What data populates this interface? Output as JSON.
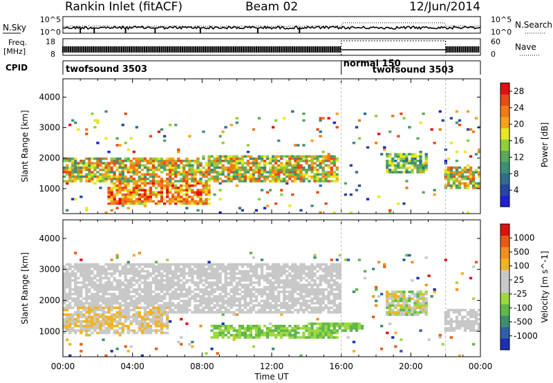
{
  "header": {
    "station": "Rankin Inlet (fitACF)",
    "beam": "Beam 02",
    "date": "12/Jun/2014"
  },
  "summary": {
    "nsky_label": "N.Sky",
    "nsearch_label": "N.Search",
    "freq_label_line1": "Freq.",
    "freq_label_line2": "[MHz]",
    "nave_label": "Nave",
    "cpid_label": "CPID",
    "noise_ticks": [
      "10^5",
      "10^0"
    ],
    "noise_ticks_right": [
      "10^5",
      "10^0"
    ],
    "freq_ticks": [
      "18",
      "8"
    ],
    "nave_ticks": [
      "60",
      "0"
    ],
    "cpid_segments": [
      {
        "name": "twofsound 3503",
        "start": 0,
        "end": 16
      },
      {
        "name": "normal 150",
        "start": 16,
        "end": 22
      },
      {
        "name": "twofsound 3503",
        "start": 16,
        "end": 22
      },
      {
        "name": "",
        "start": 22,
        "end": 24
      }
    ]
  },
  "colors": {
    "power_scale": [
      "#1f1fd6",
      "#2646a0",
      "#2f6e8c",
      "#3c8f74",
      "#5aa85c",
      "#8fcf3c",
      "#e8e820",
      "#f6a21a",
      "#f07a18",
      "#e84a18",
      "#e01010"
    ],
    "velocity_scale": [
      "#1c2eb4",
      "#2f5fa6",
      "#3c8f6c",
      "#5fb84a",
      "#9dd840",
      "#c8c8c8",
      "#c8c8c8",
      "#f2b320",
      "#f09020",
      "#e85a18",
      "#e01010"
    ],
    "missing": "#ffffff"
  },
  "chart_data": [
    {
      "type": "heatmap",
      "title": "",
      "xlabel": "Time UT",
      "ylabel": "Slant Range [km]",
      "colorbar_label": "Power [dB]",
      "xlim": [
        "00:00",
        "24:00"
      ],
      "ylim": [
        180,
        4600
      ],
      "x_ticks": [
        "00:00",
        "04:00",
        "08:00",
        "12:00",
        "16:00",
        "20:00",
        "00:00"
      ],
      "y_ticks": [
        1000,
        2000,
        3000,
        4000
      ],
      "colorbar_ticks": [
        4,
        8,
        12,
        16,
        20,
        24,
        28
      ],
      "colorbar_range": [
        0,
        30
      ],
      "features": [
        {
          "t_start": 0.0,
          "t_end": 15.8,
          "range_km": [
            1200,
            2000
          ],
          "value_db": [
            8,
            28
          ]
        },
        {
          "t_start": 2.5,
          "t_end": 8.5,
          "range_km": [
            500,
            1300
          ],
          "value_db": [
            16,
            30
          ]
        },
        {
          "t_start": 8.0,
          "t_end": 15.8,
          "range_km": [
            1500,
            2100
          ],
          "value_db": [
            8,
            24
          ]
        },
        {
          "t_start": 18.5,
          "t_end": 21.0,
          "range_km": [
            1500,
            2200
          ],
          "value_db": [
            6,
            20
          ]
        },
        {
          "t_start": 22.0,
          "t_end": 24.0,
          "range_km": [
            1000,
            1700
          ],
          "value_db": [
            8,
            26
          ]
        }
      ]
    },
    {
      "type": "heatmap",
      "title": "",
      "xlabel": "Time UT",
      "ylabel": "Slant Range [km]",
      "colorbar_label": "Velocity [m s^-1]",
      "xlim": [
        "00:00",
        "24:00"
      ],
      "ylim": [
        180,
        4600
      ],
      "x_ticks": [
        "00:00",
        "04:00",
        "08:00",
        "12:00",
        "16:00",
        "20:00",
        "00:00"
      ],
      "y_ticks": [
        1000,
        2000,
        3000,
        4000
      ],
      "colorbar_ticks": [
        1000,
        500,
        100,
        25,
        -25,
        -100,
        -500,
        -1000
      ],
      "colorbar_range": [
        -1000,
        1000
      ],
      "features": [
        {
          "t_start": 0.0,
          "t_end": 6.0,
          "range_km": [
            900,
            1800
          ],
          "value_ms": [
            25,
            500
          ]
        },
        {
          "t_start": 0.0,
          "t_end": 16.0,
          "range_km": [
            1600,
            3200
          ],
          "value_ms": [
            -25,
            25
          ]
        },
        {
          "t_start": 8.5,
          "t_end": 15.8,
          "range_km": [
            800,
            1200
          ],
          "value_ms": [
            -500,
            -100
          ]
        },
        {
          "t_start": 14.0,
          "t_end": 17.2,
          "range_km": [
            1000,
            1300
          ],
          "value_ms": [
            -500,
            -100
          ]
        },
        {
          "t_start": 18.5,
          "t_end": 21.0,
          "range_km": [
            1500,
            2300
          ],
          "value_ms": [
            -500,
            500
          ]
        },
        {
          "t_start": 22.0,
          "t_end": 24.0,
          "range_km": [
            1000,
            1700
          ],
          "value_ms": [
            -100,
            25
          ]
        }
      ]
    }
  ]
}
